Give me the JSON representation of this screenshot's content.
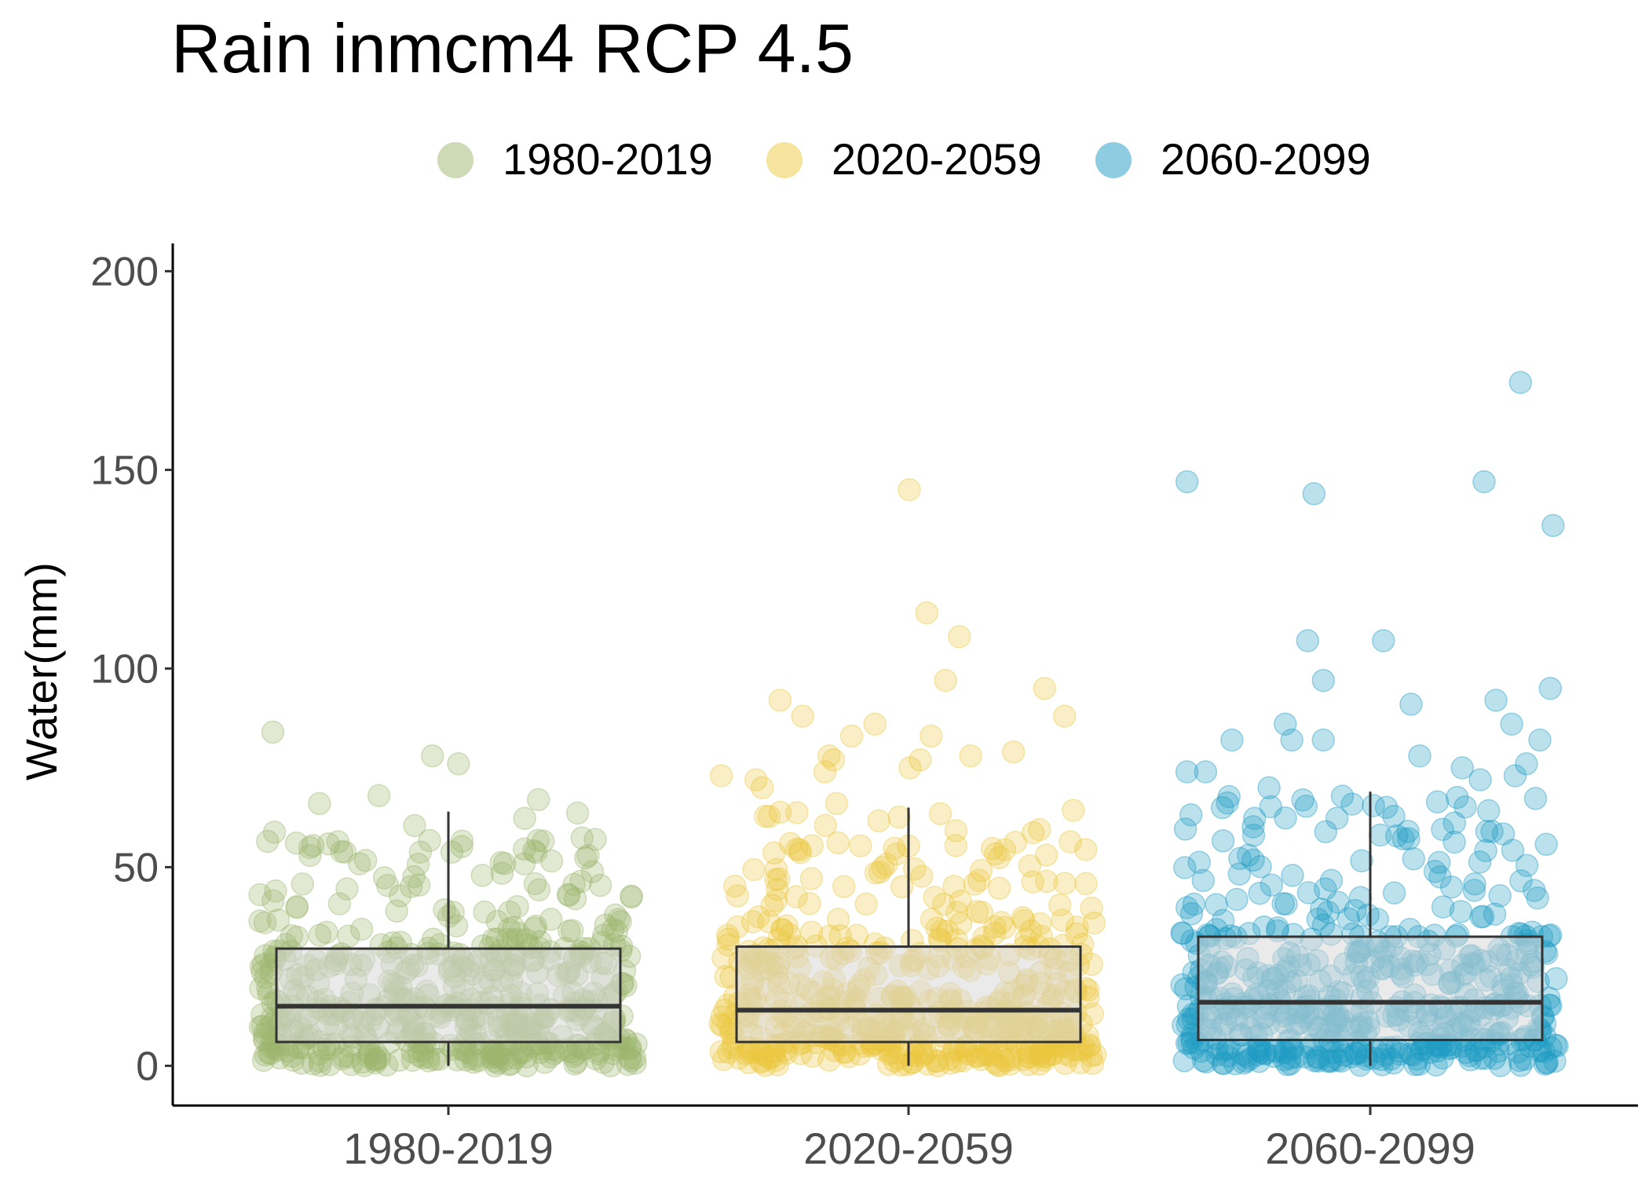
{
  "chart_data": {
    "type": "box-jitter",
    "title": "Rain inmcm4 RCP 4.5",
    "ylabel": "Water(mm)",
    "xlabel": "",
    "ylim": [
      -10,
      207
    ],
    "yticks": [
      0,
      50,
      100,
      150,
      200
    ],
    "legend_position": "top",
    "grid": false,
    "categories": [
      "1980-2019",
      "2020-2059",
      "2060-2099"
    ],
    "legend": [
      "1980-2019",
      "2020-2059",
      "2060-2099"
    ],
    "colors": [
      "#9db56e",
      "#ebc83e",
      "#1e9ac4"
    ],
    "boxes": [
      {
        "category": "1980-2019",
        "q1": 6,
        "median": 15,
        "q3": 29.5,
        "whisker_low": 0,
        "whisker_high": 64
      },
      {
        "category": "2020-2059",
        "q1": 6,
        "median": 14,
        "q3": 30,
        "whisker_low": 0,
        "whisker_high": 65
      },
      {
        "category": "2060-2099",
        "q1": 6.5,
        "median": 16,
        "q3": 32.5,
        "whisker_low": 0,
        "whisker_high": 69
      }
    ],
    "outliers": [
      {
        "category": "1980-2019",
        "values": [
          66,
          67,
          68,
          76,
          78,
          84
        ]
      },
      {
        "category": "2020-2059",
        "values": [
          66,
          70,
          72,
          73,
          74,
          75,
          77,
          77,
          78,
          78,
          79,
          83,
          83,
          86,
          88,
          88,
          92,
          95,
          97,
          108,
          114,
          145
        ]
      },
      {
        "category": "2060-2099",
        "values": [
          70,
          72,
          73,
          74,
          74,
          75,
          76,
          78,
          82,
          82,
          82,
          82,
          86,
          86,
          91,
          92,
          95,
          97,
          107,
          107,
          136,
          144,
          147,
          147,
          172
        ]
      }
    ]
  }
}
